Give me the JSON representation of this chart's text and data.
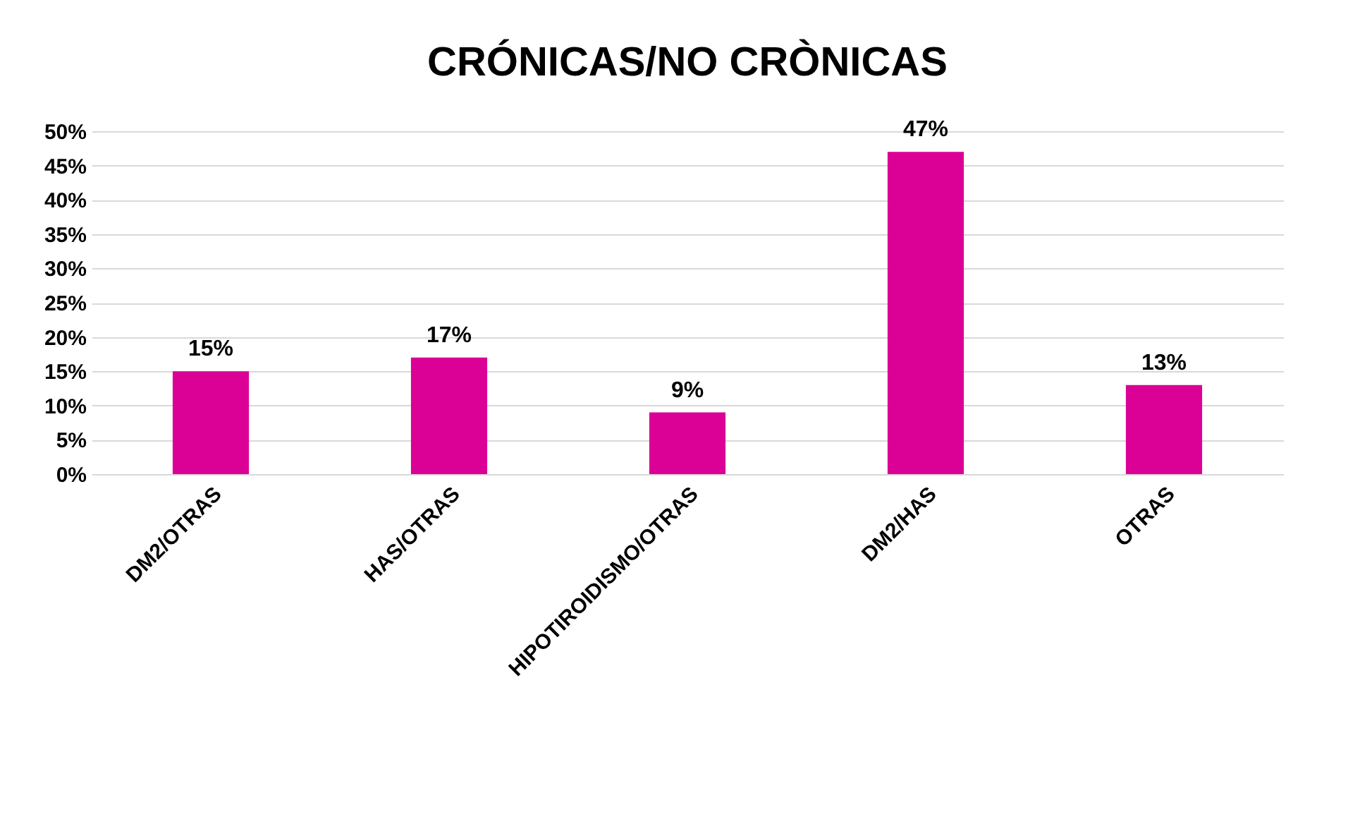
{
  "chart_data": {
    "type": "bar",
    "title": "CRÓNICAS/NO CRÒNICAS",
    "categories": [
      "DM2/OTRAS",
      "HAS/OTRAS",
      "HIPOTIROIDISMO/OTRAS",
      "DM2/HAS",
      "OTRAS"
    ],
    "values": [
      15,
      17,
      9,
      47,
      13
    ],
    "value_labels": [
      "15%",
      "17%",
      "9%",
      "47%",
      "13%"
    ],
    "color": "#db0096",
    "ylim": [
      0,
      50
    ],
    "yticks": [
      {
        "value": 0,
        "label": "0%"
      },
      {
        "value": 5,
        "label": "5%"
      },
      {
        "value": 10,
        "label": "10%"
      },
      {
        "value": 15,
        "label": "15%"
      },
      {
        "value": 20,
        "label": "20%"
      },
      {
        "value": 25,
        "label": "25%"
      },
      {
        "value": 30,
        "label": "30%"
      },
      {
        "value": 35,
        "label": "35%"
      },
      {
        "value": 40,
        "label": "40%"
      },
      {
        "value": 45,
        "label": "45%"
      },
      {
        "value": 50,
        "label": "50%"
      }
    ],
    "grid": "y"
  }
}
